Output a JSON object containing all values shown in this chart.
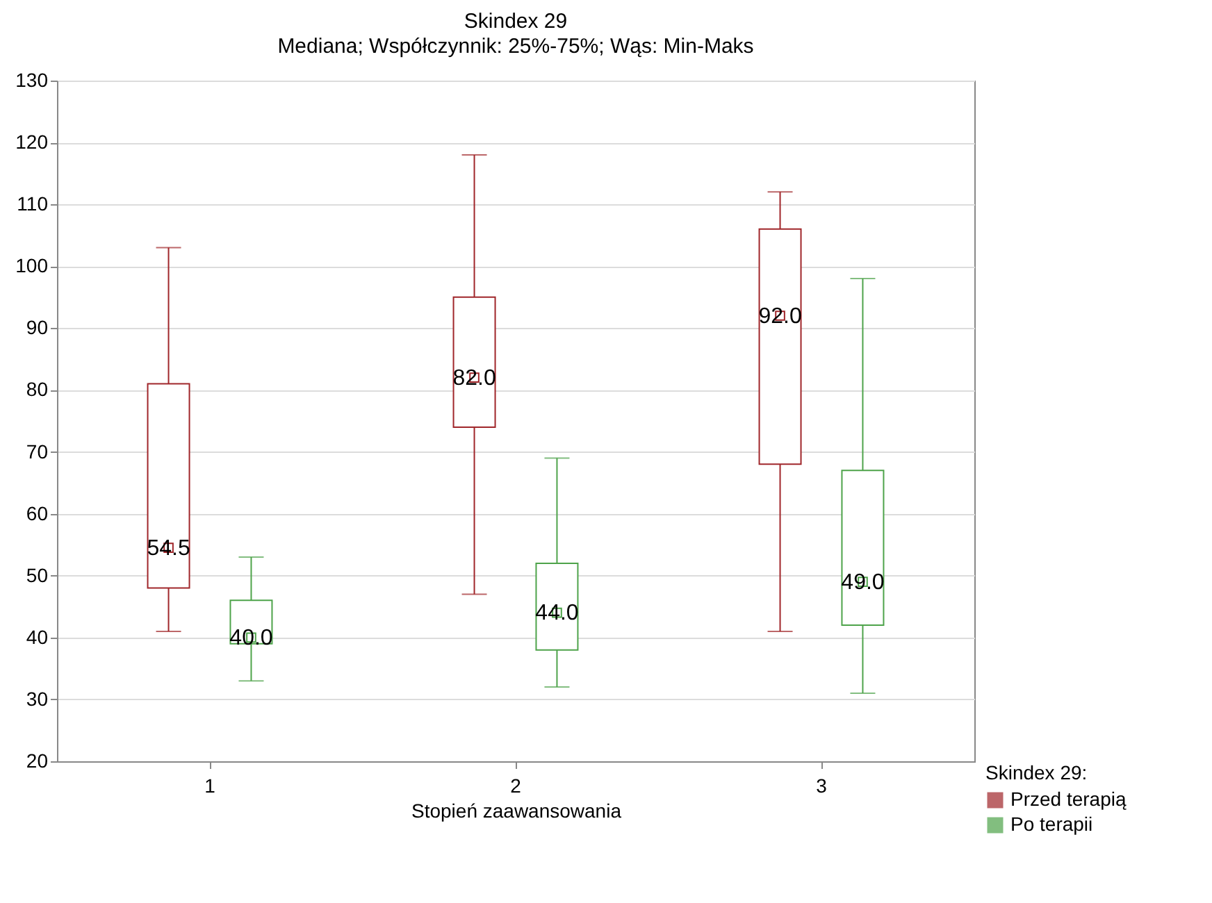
{
  "chart_data": {
    "type": "box",
    "title": "Skindex 29",
    "subtitle": "Mediana; Współczynnik: 25%-75%; Wąs: Min-Maks",
    "xlabel": "Stopień zaawansowania",
    "legend_title": "Skindex 29:",
    "categories": [
      "1",
      "2",
      "3"
    ],
    "series": [
      {
        "name": "Przed terapią",
        "color": "#a0262a",
        "boxes": [
          {
            "low": 41,
            "q1": 48,
            "median": 54.5,
            "q3": 81,
            "high": 103
          },
          {
            "low": 47,
            "q1": 74,
            "median": 82,
            "q3": 95,
            "high": 118
          },
          {
            "low": 41,
            "q1": 68,
            "median": 92,
            "q3": 106,
            "high": 112
          }
        ],
        "value_labels": [
          "54.5",
          "82.0",
          "92.0"
        ]
      },
      {
        "name": "Po terapii",
        "color": "#4ea34a",
        "boxes": [
          {
            "low": 33,
            "q1": 39,
            "median": 40,
            "q3": 46,
            "high": 53
          },
          {
            "low": 32,
            "q1": 38,
            "median": 44,
            "q3": 52,
            "high": 69
          },
          {
            "low": 31,
            "q1": 42,
            "median": 49,
            "q3": 67,
            "high": 98
          }
        ],
        "value_labels": [
          "40.0",
          "44.0",
          "49.0"
        ]
      }
    ],
    "ylim": [
      20,
      130
    ],
    "yticks": [
      20,
      30,
      40,
      50,
      60,
      70,
      80,
      90,
      100,
      110,
      120,
      130
    ],
    "grid": "y",
    "legend": "bottom right",
    "marker": "square"
  }
}
